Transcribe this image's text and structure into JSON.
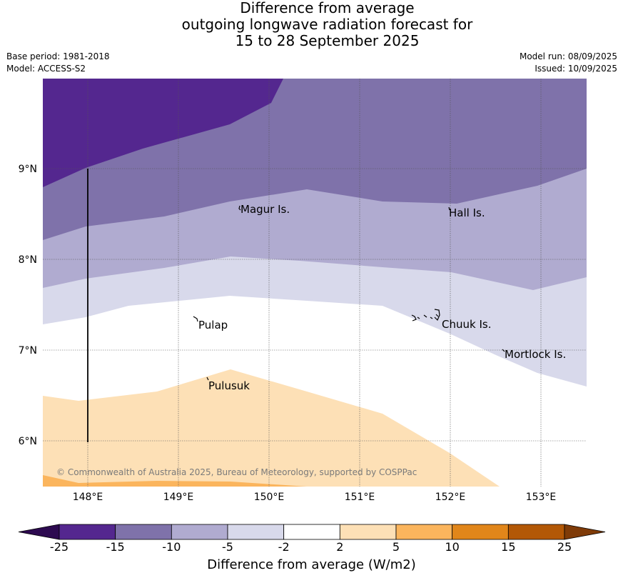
{
  "title": {
    "line1": "Difference from average",
    "line2": "outgoing longwave radiation forecast for",
    "line3": "15 to 28 September 2025"
  },
  "meta": {
    "base_period": "Base period: 1981-2018",
    "model": "Model: ACCESS-S2",
    "model_run": "Model run: 08/09/2025",
    "issued": "Issued: 10/09/2025"
  },
  "map": {
    "lon_ticks": [
      "148°E",
      "149°E",
      "150°E",
      "151°E",
      "152°E",
      "153°E"
    ],
    "lat_ticks": [
      "9°N",
      "8°N",
      "7°N",
      "6°N"
    ],
    "places": [
      "Magur Is.",
      "Hall Is.",
      "Pulap",
      "Chuuk Is.",
      "Mortlock Is.",
      "Pulusuk"
    ],
    "copyright": "© Commonwealth of Australia 2025, Bureau of Meteorology, supported by COSPPac"
  },
  "colorbar": {
    "title": "Difference from average (W/m2)",
    "tick_labels": [
      "-25",
      "-15",
      "-10",
      "-5",
      "-2",
      "2",
      "5",
      "10",
      "15",
      "25"
    ],
    "colors": {
      "below_min": "#2d0a50",
      "c_-25_-15": "#54278f",
      "c_-15_-10": "#7f72aa",
      "c_-10_-5": "#b0abd0",
      "c_-5_-2": "#d8d9eb",
      "c_-2_2": "#ffffff",
      "c_2_5": "#fde0b6",
      "c_5_10": "#fbb55d",
      "c_10_15": "#e1861a",
      "c_15_25": "#b35806",
      "above_max": "#7f3b08"
    }
  }
}
